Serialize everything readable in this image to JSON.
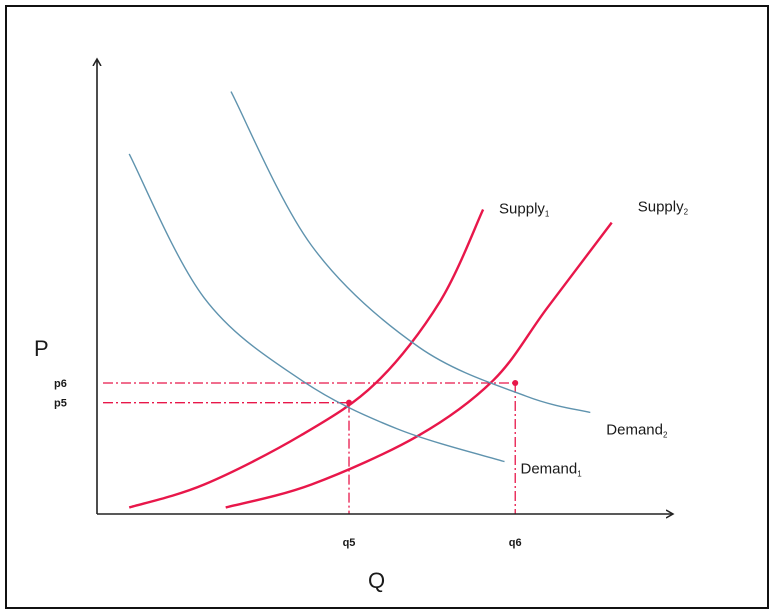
{
  "chart_data": {
    "type": "line",
    "title": "",
    "ylabel": "P",
    "xlabel": "Q",
    "grid": false,
    "colors": {
      "supply": "#e8174a",
      "demand": "#5f93ae",
      "guide": "#e8174a",
      "axis": "#222222"
    },
    "series": [
      {
        "name": "Supply",
        "sub": "1",
        "kind": "supply",
        "points": [
          [
            0.6,
            0.2
          ],
          [
            2.0,
            0.9
          ],
          [
            3.8,
            2.4
          ],
          [
            5.2,
            4.0
          ],
          [
            6.4,
            6.5
          ],
          [
            7.2,
            9.3
          ]
        ]
      },
      {
        "name": "Supply",
        "sub": "2",
        "kind": "supply",
        "points": [
          [
            2.4,
            0.2
          ],
          [
            4.0,
            0.9
          ],
          [
            6.0,
            2.4
          ],
          [
            7.4,
            4.1
          ],
          [
            8.4,
            6.3
          ],
          [
            9.6,
            8.9
          ]
        ]
      },
      {
        "name": "Demand",
        "sub": "1",
        "kind": "demand",
        "points": [
          [
            0.6,
            11.0
          ],
          [
            2.0,
            6.6
          ],
          [
            3.8,
            4.1
          ],
          [
            5.6,
            2.6
          ],
          [
            7.6,
            1.6
          ]
        ]
      },
      {
        "name": "Demand",
        "sub": "2",
        "kind": "demand",
        "points": [
          [
            2.5,
            12.9
          ],
          [
            4.0,
            8.2
          ],
          [
            6.0,
            5.1
          ],
          [
            8.0,
            3.6
          ],
          [
            9.2,
            3.1
          ]
        ]
      }
    ],
    "equilibria": [
      {
        "x_label": "q5",
        "y_label": "p5",
        "x": 4.7,
        "y": 3.4
      },
      {
        "x_label": "q6",
        "y_label": "p6",
        "x": 7.8,
        "y": 4.0
      }
    ],
    "xlim": [
      0,
      10.5
    ],
    "ylim": [
      0,
      13.5
    ]
  }
}
